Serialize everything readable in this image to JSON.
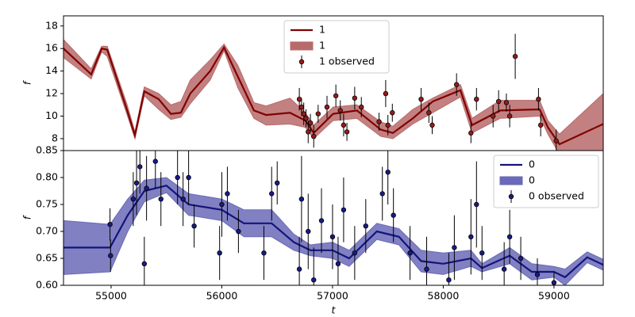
{
  "chart_data": [
    {
      "type": "line",
      "ylabel": "f",
      "xlim": [
        54570,
        59445
      ],
      "ylim": [
        6.94,
        18.9
      ],
      "yticks": [
        8,
        10,
        12,
        14,
        16,
        18
      ],
      "legend": "upper center",
      "series": [
        {
          "type": "line",
          "name": "1",
          "color": "#800000",
          "x": [
            54570,
            54820,
            54915,
            54965,
            55145,
            55215,
            55300,
            55430,
            55540,
            55630,
            55715,
            55895,
            56020,
            56145,
            56290,
            56400,
            56615,
            56755,
            56830,
            57005,
            57220,
            57435,
            57545,
            57725,
            57905,
            58155,
            58260,
            58515,
            58870,
            58945,
            59050,
            59445
          ],
          "values": [
            16,
            13.7,
            16,
            15.9,
            10.5,
            8.3,
            12.2,
            11.5,
            10.2,
            10.3,
            12,
            14,
            16.1,
            13.5,
            10.5,
            10.1,
            10.3,
            9.6,
            8.5,
            10.2,
            10.5,
            8.8,
            8.5,
            9.8,
            11.3,
            12.3,
            9.2,
            10.5,
            10.6,
            9.0,
            7.5,
            9.3
          ]
        },
        {
          "type": "band",
          "name": "1",
          "color": "#b86a6a",
          "x": [
            54570,
            54820,
            54915,
            54965,
            55145,
            55215,
            55300,
            55430,
            55540,
            55630,
            55715,
            55895,
            56020,
            56145,
            56290,
            56400,
            56615,
            56755,
            56830,
            57005,
            57220,
            57435,
            57545,
            57725,
            57905,
            58155,
            58260,
            58515,
            58870,
            58945,
            59050,
            59445
          ],
          "lower": [
            15.2,
            13.3,
            15.7,
            15.3,
            10.1,
            8.0,
            11.8,
            10.6,
            9.7,
            9.9,
            11.1,
            13.2,
            15.8,
            12.5,
            9.8,
            9.2,
            9.3,
            9.0,
            8.0,
            9.6,
            9.8,
            8.2,
            8.0,
            9.3,
            10.3,
            11.7,
            8.5,
            9.8,
            10.0,
            8.4,
            6.6,
            6.9
          ],
          "upper": [
            16.8,
            14.2,
            16.2,
            16.2,
            11.0,
            8.6,
            12.6,
            12.0,
            11.0,
            11.3,
            13.2,
            15,
            16.4,
            14.5,
            11.2,
            10.9,
            11.6,
            10.3,
            9.2,
            10.8,
            11.0,
            9.5,
            9.1,
            10.6,
            11.6,
            12.8,
            9.8,
            11.4,
            11.4,
            9.6,
            8.4,
            12.0
          ]
        },
        {
          "type": "errorbar",
          "name": "1 observed",
          "color": "#9a1a1a",
          "x": [
            56700,
            56720,
            56740,
            56760,
            56780,
            56800,
            56830,
            56870,
            56950,
            57030,
            57070,
            57100,
            57130,
            57200,
            57260,
            57420,
            57480,
            57500,
            57540,
            57800,
            57870,
            57900,
            58120,
            58250,
            58300,
            58450,
            58500,
            58570,
            58600,
            58650,
            58860,
            58880,
            59020
          ],
          "values": [
            11.5,
            10.8,
            10.2,
            9.8,
            8.6,
            9.4,
            8.2,
            10.2,
            10.8,
            11.8,
            10.5,
            9.2,
            8.6,
            11.6,
            10.8,
            9.5,
            12,
            9.2,
            10.3,
            11.5,
            10.3,
            9.2,
            12.8,
            8.5,
            11.5,
            10.0,
            11.3,
            11.2,
            10.0,
            15.3,
            11.5,
            9.2,
            7.8
          ],
          "errors": [
            1,
            0.8,
            1,
            0.8,
            1,
            0.8,
            1,
            0.8,
            1,
            1,
            0.9,
            1,
            0.8,
            1,
            0.9,
            0.8,
            1.2,
            0.9,
            0.8,
            1,
            0.9,
            0.8,
            1,
            0.9,
            1,
            1,
            1,
            0.8,
            1,
            2,
            1,
            1,
            1
          ]
        }
      ]
    },
    {
      "type": "line",
      "ylabel": "f",
      "xlabel": "t",
      "xlim": [
        54570,
        59445
      ],
      "ylim": [
        0.6,
        0.85
      ],
      "xticks": [
        55000,
        56000,
        57000,
        58000,
        59000
      ],
      "yticks": [
        {
          "value": 0.6,
          "label": "0.60"
        },
        {
          "value": 0.65,
          "label": "0.65"
        },
        {
          "value": 0.7,
          "label": "0.70"
        },
        {
          "value": 0.75,
          "label": "0.75"
        },
        {
          "value": 0.8,
          "label": "0.80"
        },
        {
          "value": 0.85,
          "label": "0.85"
        }
      ],
      "legend": "upper right",
      "series": [
        {
          "type": "line",
          "name": "0",
          "color": "#14147a",
          "x": [
            54570,
            54990,
            55150,
            55300,
            55500,
            55700,
            56000,
            56200,
            56450,
            56650,
            56800,
            57000,
            57150,
            57400,
            57600,
            57800,
            58000,
            58250,
            58350,
            58600,
            58800,
            59000,
            59100,
            59300,
            59445
          ],
          "values": [
            0.67,
            0.67,
            0.73,
            0.775,
            0.785,
            0.75,
            0.74,
            0.715,
            0.715,
            0.68,
            0.665,
            0.665,
            0.65,
            0.7,
            0.69,
            0.645,
            0.64,
            0.65,
            0.632,
            0.655,
            0.625,
            0.625,
            0.615,
            0.652,
            0.638
          ]
        },
        {
          "type": "band",
          "name": "0",
          "color": "#6a6ab8",
          "x": [
            54570,
            54990,
            55150,
            55300,
            55500,
            55700,
            56000,
            56200,
            56450,
            56650,
            56800,
            57000,
            57150,
            57400,
            57600,
            57800,
            58000,
            58250,
            58350,
            58600,
            58800,
            59000,
            59100,
            59300,
            59445
          ],
          "lower": [
            0.62,
            0.625,
            0.7,
            0.755,
            0.772,
            0.73,
            0.72,
            0.69,
            0.69,
            0.665,
            0.655,
            0.65,
            0.635,
            0.685,
            0.675,
            0.625,
            0.62,
            0.635,
            0.625,
            0.64,
            0.61,
            0.615,
            0.6,
            0.642,
            0.628
          ],
          "upper": [
            0.72,
            0.713,
            0.76,
            0.795,
            0.8,
            0.77,
            0.76,
            0.74,
            0.74,
            0.695,
            0.675,
            0.68,
            0.665,
            0.715,
            0.705,
            0.665,
            0.66,
            0.665,
            0.64,
            0.67,
            0.64,
            0.635,
            0.63,
            0.662,
            0.648
          ]
        },
        {
          "type": "errorbar",
          "name": "0 observed",
          "color": "#1a1a8a",
          "x": [
            54990,
            54995,
            55200,
            55230,
            55260,
            55300,
            55320,
            55400,
            55450,
            55600,
            55650,
            55700,
            55750,
            55980,
            56000,
            56050,
            56150,
            56380,
            56450,
            56500,
            56700,
            56720,
            56780,
            56830,
            56900,
            57000,
            57050,
            57100,
            57200,
            57300,
            57450,
            57500,
            57550,
            57700,
            57850,
            58050,
            58100,
            58250,
            58300,
            58350,
            58550,
            58600,
            58700,
            58850,
            59000
          ],
          "values": [
            0.713,
            0.655,
            0.76,
            0.79,
            0.82,
            0.64,
            0.78,
            0.83,
            0.76,
            0.8,
            0.76,
            0.8,
            0.71,
            0.66,
            0.75,
            0.77,
            0.7,
            0.66,
            0.77,
            0.79,
            0.63,
            0.76,
            0.7,
            0.61,
            0.72,
            0.69,
            0.64,
            0.74,
            0.66,
            0.71,
            0.77,
            0.81,
            0.73,
            0.66,
            0.63,
            0.61,
            0.67,
            0.69,
            0.75,
            0.66,
            0.63,
            0.69,
            0.65,
            0.62,
            0.605
          ],
          "errors": [
            0.03,
            0.03,
            0.05,
            0.06,
            0.05,
            0.05,
            0.06,
            0.05,
            0.05,
            0.05,
            0.05,
            0.05,
            0.04,
            0.05,
            0.06,
            0.05,
            0.04,
            0.05,
            0.05,
            0.04,
            0.06,
            0.08,
            0.07,
            0.06,
            0.06,
            0.06,
            0.05,
            0.06,
            0.05,
            0.05,
            0.05,
            0.06,
            0.05,
            0.05,
            0.06,
            0.05,
            0.06,
            0.07,
            0.08,
            0.05,
            0.05,
            0.05,
            0.04,
            0.03,
            0.02
          ]
        }
      ]
    }
  ]
}
